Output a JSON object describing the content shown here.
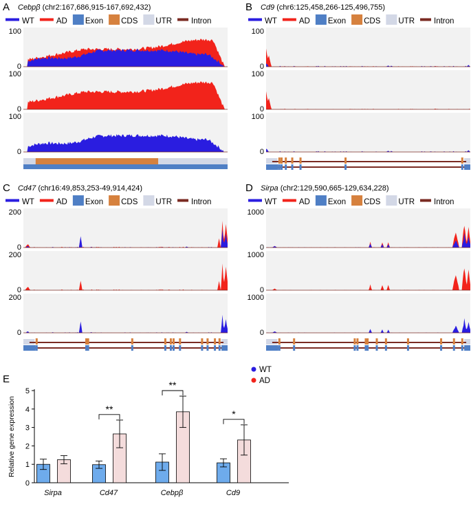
{
  "colors": {
    "wt": "#2a1de0",
    "ad": "#f2231b",
    "exon": "#4f7fc5",
    "cds": "#d6813e",
    "utr": "#d3d8e6",
    "intron": "#7a2a22",
    "track_bg": "#f2f2f2",
    "bar_wt": "#6eabec",
    "bar_ad": "#f4dcdc"
  },
  "legend": {
    "wt": "WT",
    "ad": "AD",
    "exon": "Exon",
    "cds": "CDS",
    "utr": "UTR",
    "intron": "Intron"
  },
  "panels": [
    {
      "letter": "A",
      "gene": "Cebpβ",
      "coords": "(chr2:167,686,915-167,692,432)",
      "y_ticks": [
        "0",
        "100"
      ],
      "profile": "cebpb"
    },
    {
      "letter": "B",
      "gene": "Cd9",
      "coords": "(chr6:125,458,266-125,496,755)",
      "y_ticks": [
        "0",
        "100"
      ],
      "profile": "cd9"
    },
    {
      "letter": "C",
      "gene": "Cd47",
      "coords": "(chr16:49,853,253-49,914,424)",
      "y_ticks": [
        "0",
        "200"
      ],
      "profile": "cd47"
    },
    {
      "letter": "D",
      "gene": "Sirpa",
      "coords": "(chr2:129,590,665-129,634,228)",
      "y_ticks": [
        "0",
        "1000"
      ],
      "profile": "sirpa"
    }
  ],
  "panel_e": {
    "letter": "E",
    "legend_wt": "WT",
    "legend_ad": "AD"
  },
  "chart_data": {
    "type": "bar",
    "title": "",
    "xlabel": "",
    "ylabel": "Relative gene expression",
    "ylim": [
      0,
      5
    ],
    "y_ticks": [
      0,
      1,
      2,
      3,
      4,
      5
    ],
    "categories": [
      "Sirpa",
      "Cd47",
      "Cebpβ",
      "Cd9"
    ],
    "series": [
      {
        "name": "WT",
        "values": [
          1.0,
          0.98,
          1.12,
          1.08
        ],
        "errors": [
          0.28,
          0.2,
          0.45,
          0.22
        ]
      },
      {
        "name": "AD",
        "values": [
          1.25,
          2.65,
          3.85,
          2.32
        ],
        "errors": [
          0.22,
          0.75,
          0.85,
          0.82
        ]
      }
    ],
    "significance": [
      {
        "category": "Cd47",
        "label": "**"
      },
      {
        "category": "Cebpβ",
        "label": "**"
      },
      {
        "category": "Cd9",
        "label": "*"
      }
    ]
  }
}
